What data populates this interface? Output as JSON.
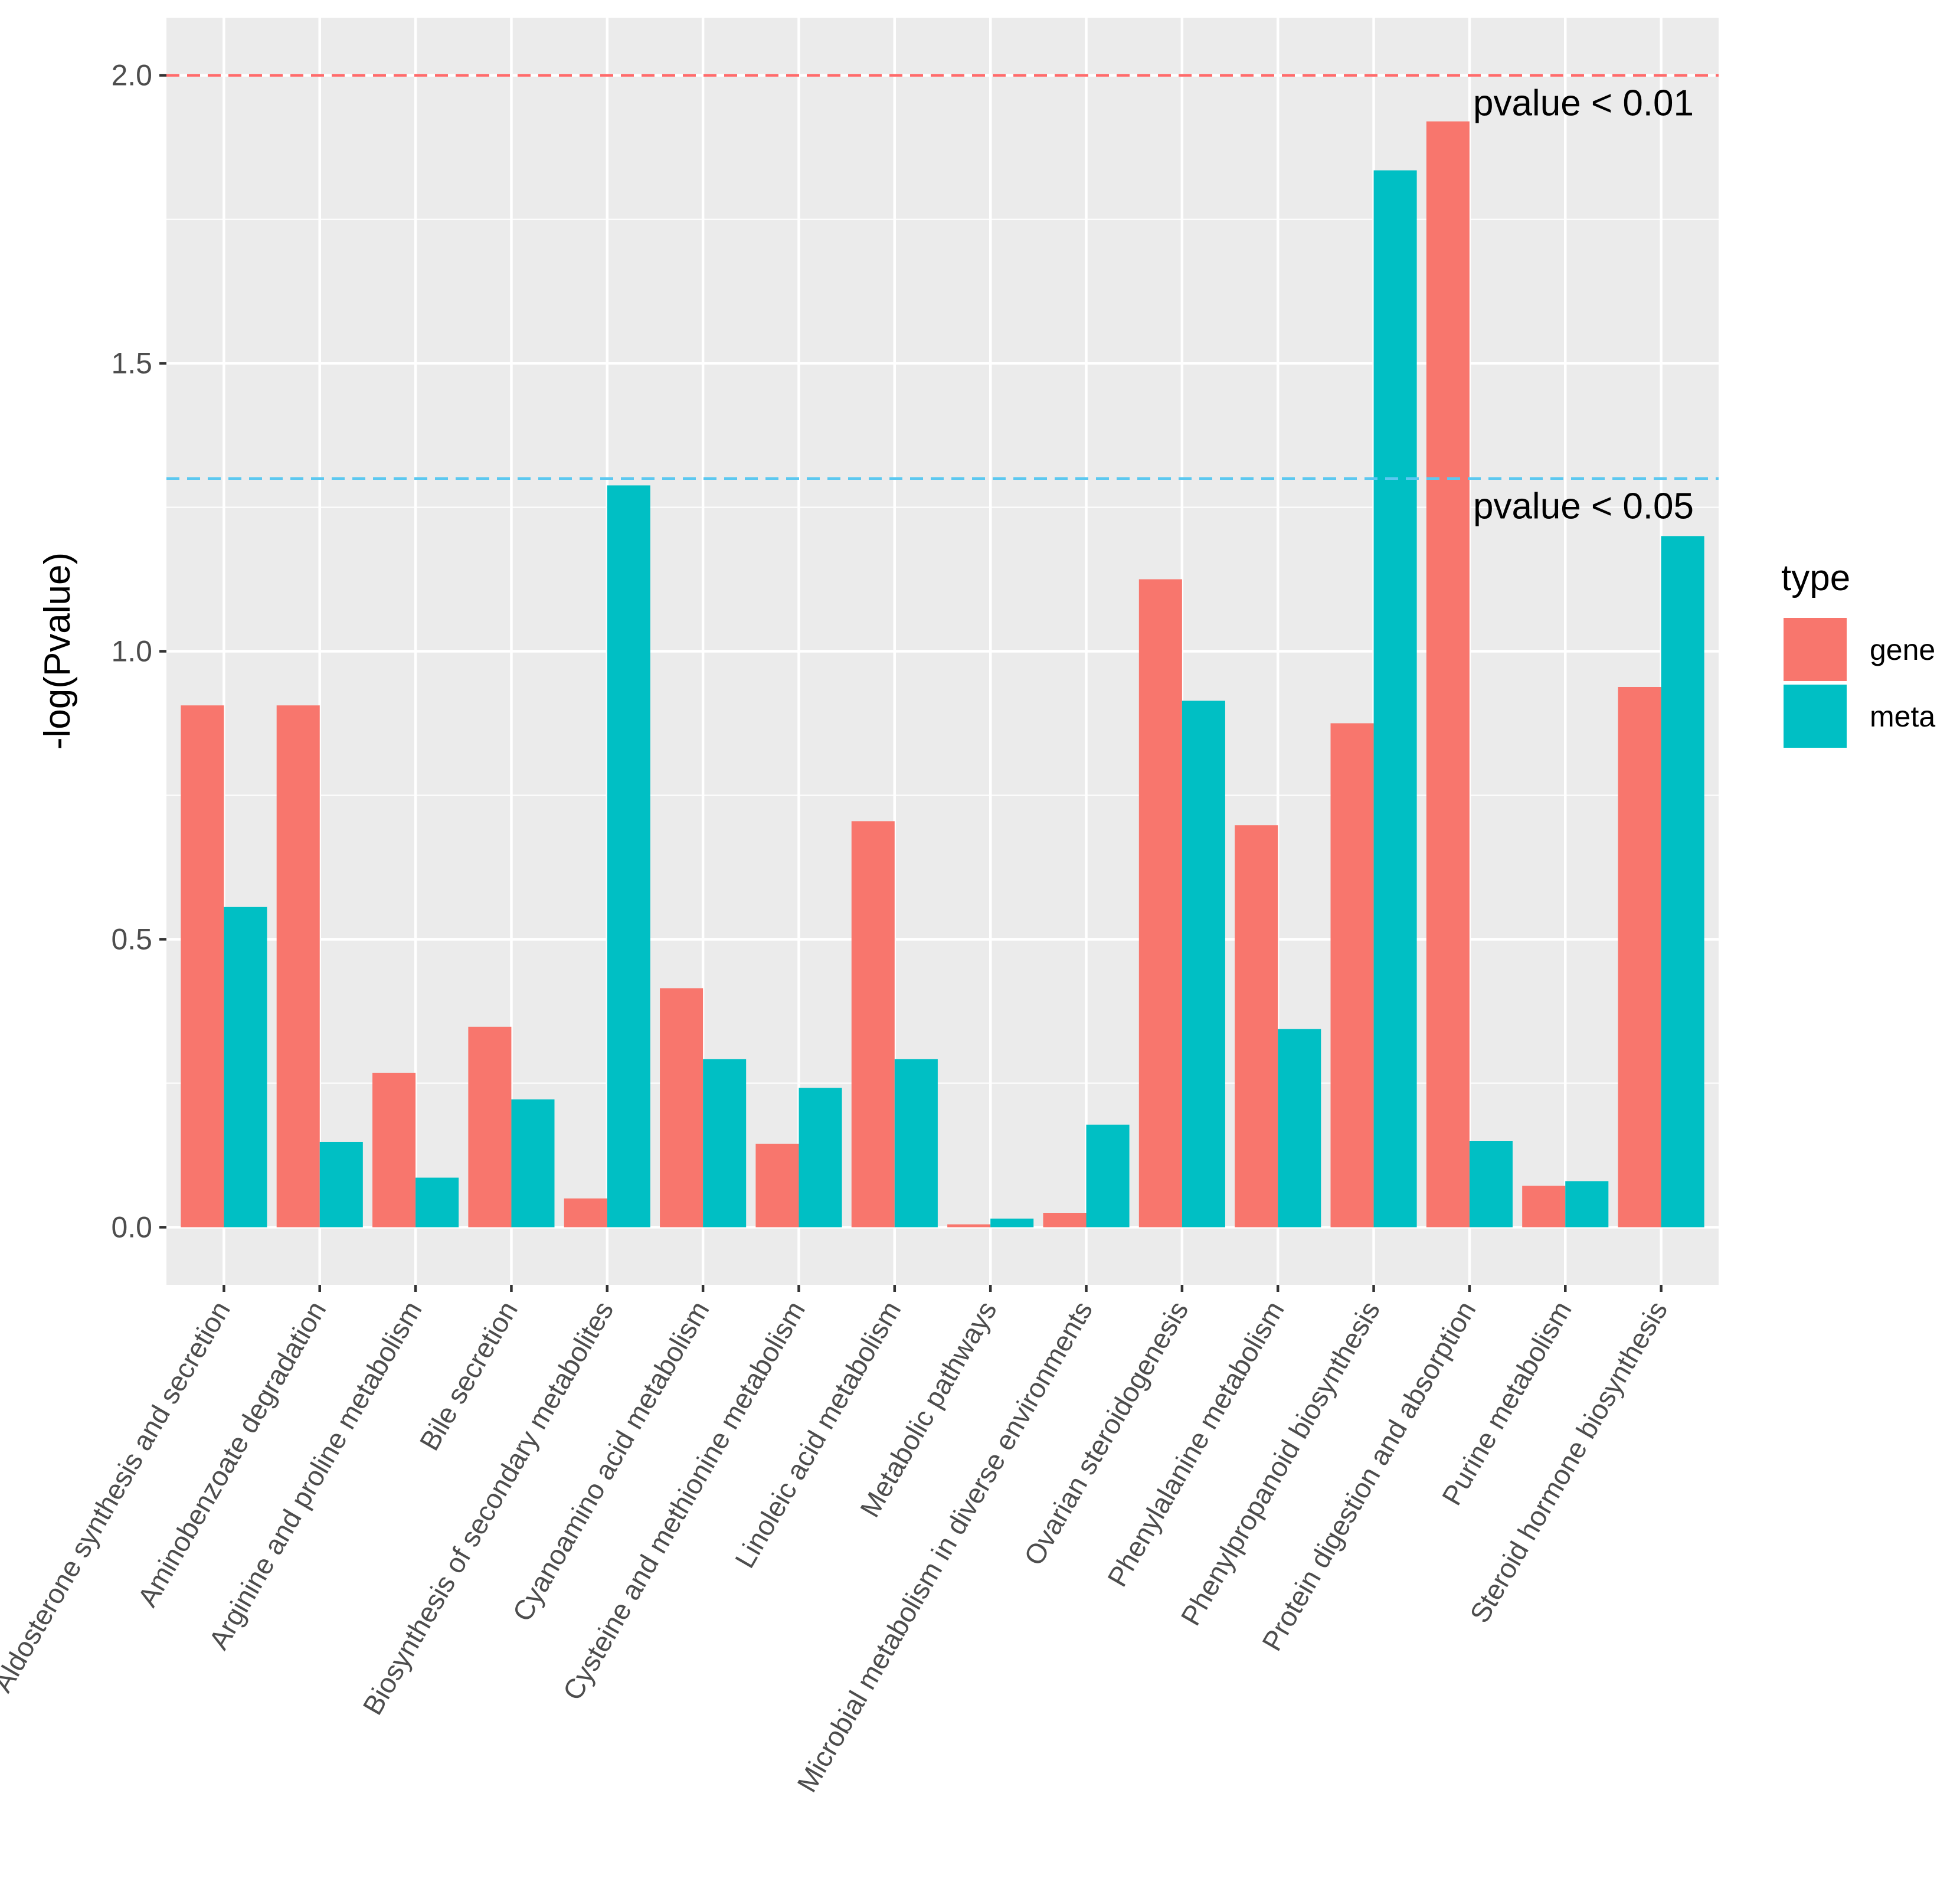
{
  "chart_data": {
    "type": "bar",
    "title": "",
    "xlabel": "",
    "ylabel": "-log(Pvalue)",
    "ylim": [
      -0.1,
      2.1
    ],
    "yticks": [
      0.0,
      0.5,
      1.0,
      1.5,
      2.0
    ],
    "ytick_labels": [
      "0.0",
      "0.5",
      "1.0",
      "1.5",
      "2.0"
    ],
    "grid": true,
    "categories": [
      "Aldosterone synthesis and secretion",
      "Aminobenzoate degradation",
      "Arginine and proline metabolism",
      "Bile secretion",
      "Biosynthesis of secondary metabolites",
      "Cyanoamino acid metabolism",
      "Cysteine and methionine metabolism",
      "Linoleic acid metabolism",
      "Metabolic pathways",
      "Microbial metabolism in diverse environments",
      "Ovarian steroidogenesis",
      "Phenylalanine metabolism",
      "Phenylpropanoid biosynthesis",
      "Protein digestion and absorption",
      "Purine metabolism",
      "Steroid hormone biosynthesis"
    ],
    "series": [
      {
        "name": "gene",
        "color": "#F8766D",
        "values": [
          0.906,
          0.906,
          0.268,
          0.348,
          0.05,
          0.415,
          0.145,
          0.705,
          0.005,
          0.025,
          1.125,
          0.698,
          0.875,
          1.92,
          0.072,
          0.938
        ]
      },
      {
        "name": "meta",
        "color": "#00BFC4",
        "values": [
          0.556,
          0.148,
          0.086,
          0.222,
          1.288,
          0.292,
          0.242,
          0.292,
          0.015,
          0.178,
          0.914,
          0.344,
          1.835,
          0.15,
          0.08,
          1.2
        ]
      }
    ],
    "legend": {
      "title": "type",
      "position": "right",
      "entries": [
        "gene",
        "meta"
      ]
    },
    "reference_lines": [
      {
        "y": 2.0,
        "color": "#FF6B6B",
        "style": "dashed",
        "label": "pvalue < 0.01"
      },
      {
        "y": 1.3,
        "color": "#5CC8F0",
        "style": "dashed",
        "label": "pvalue < 0.05"
      }
    ],
    "panel_color": "#EBEBEB",
    "grid_color": "#FFFFFF"
  }
}
